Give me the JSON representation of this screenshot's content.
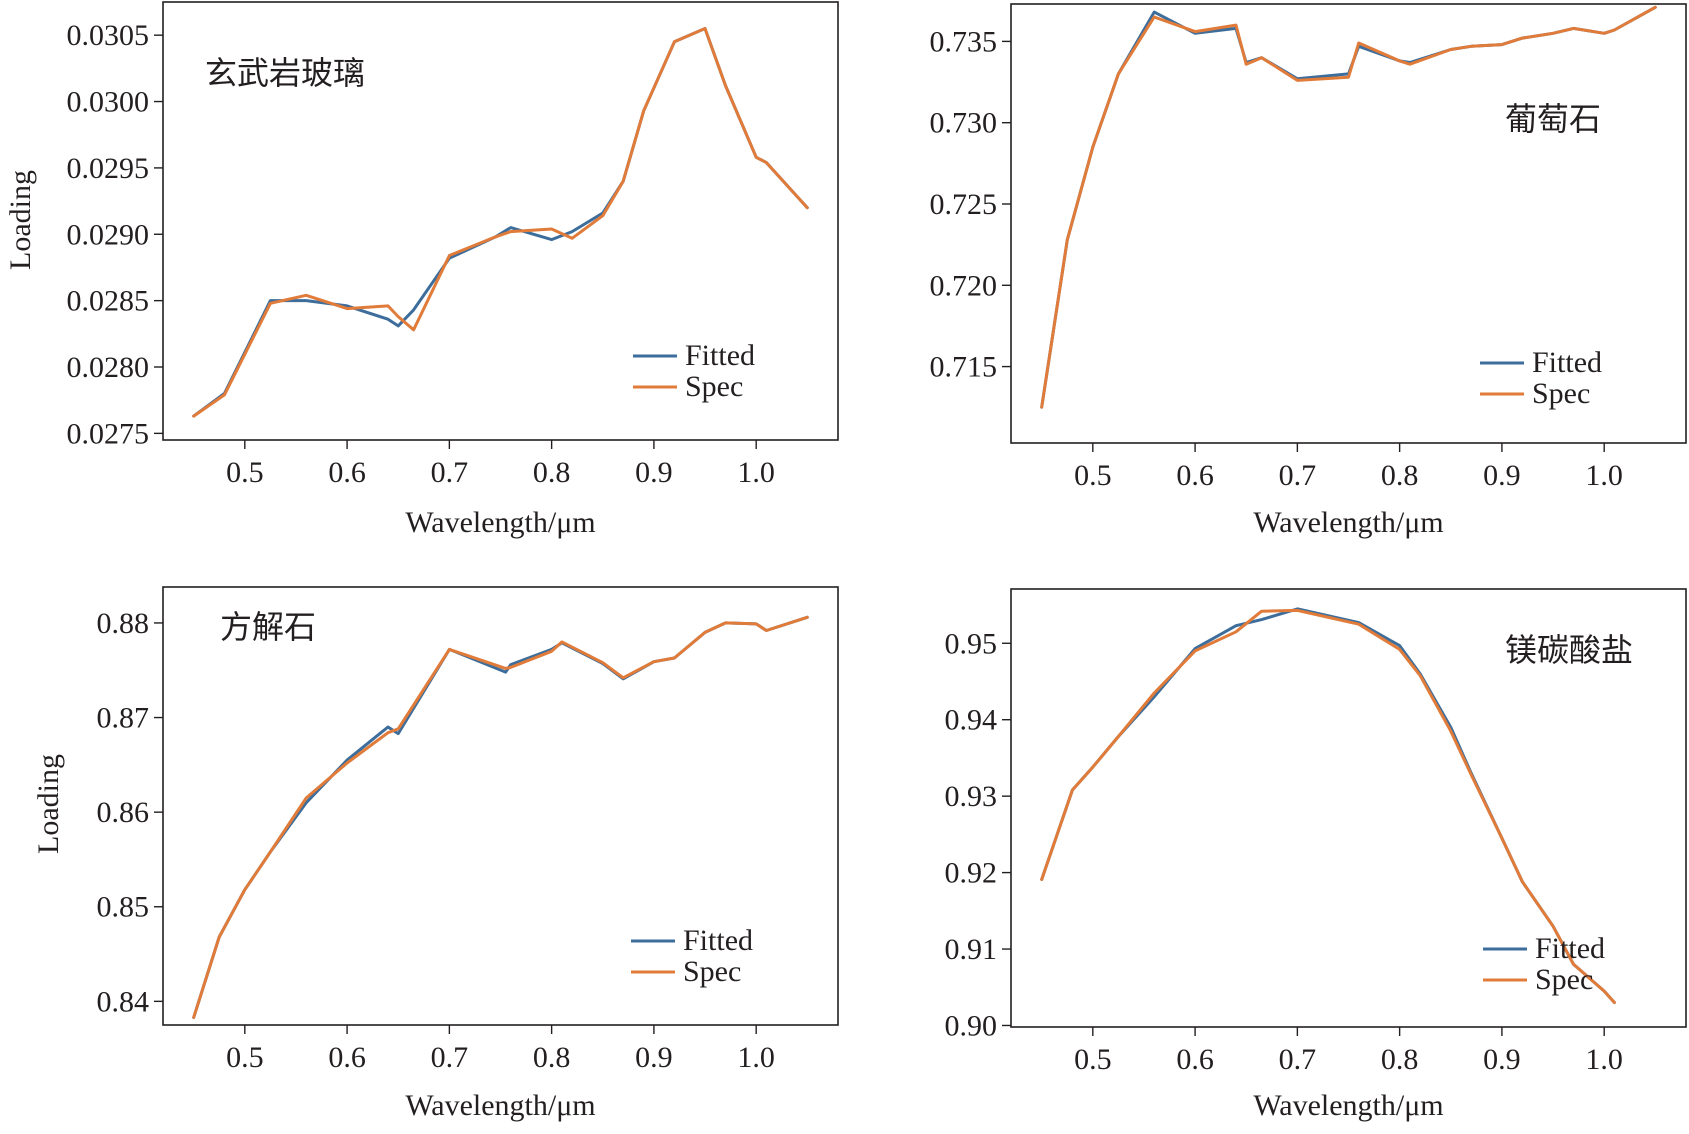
{
  "colors": {
    "fitted": "#3d6d9b",
    "spec": "#e07b39"
  },
  "chart_data": [
    {
      "type": "line",
      "title": "玄武岩玻璃",
      "xlabel": "Wavelength/μm",
      "ylabel": "Loading",
      "xlim": [
        0.42,
        1.08
      ],
      "ylim": [
        0.02745,
        0.03075
      ],
      "xticks": [
        0.5,
        0.6,
        0.7,
        0.8,
        0.9,
        1.0
      ],
      "xtick_labels": [
        "0.5",
        "0.6",
        "0.7",
        "0.8",
        "0.9",
        "1.0"
      ],
      "yticks": [
        0.0275,
        0.028,
        0.0285,
        0.029,
        0.0295,
        0.03,
        0.0305
      ],
      "ytick_labels": [
        "0.0275",
        "0.0280",
        "0.0285",
        "0.0290",
        "0.0295",
        "0.0300",
        "0.0305"
      ],
      "legend": {
        "position": "lower-right",
        "entries": [
          "Fitted",
          "Spec"
        ]
      },
      "series": [
        {
          "name": "Fitted",
          "x": [
            0.45,
            0.48,
            0.525,
            0.56,
            0.6,
            0.64,
            0.65,
            0.665,
            0.7,
            0.745,
            0.76,
            0.8,
            0.82,
            0.85,
            0.87,
            0.89,
            0.92,
            0.95,
            0.97,
            1.0,
            1.01,
            1.05
          ],
          "y": [
            0.02763,
            0.0278,
            0.0285,
            0.0285,
            0.02846,
            0.02836,
            0.02831,
            0.02843,
            0.02882,
            0.02898,
            0.02905,
            0.02896,
            0.02902,
            0.02916,
            0.0294,
            0.02993,
            0.03045,
            0.03055,
            0.03012,
            0.02958,
            0.02954,
            0.0292
          ]
        },
        {
          "name": "Spec",
          "x": [
            0.45,
            0.48,
            0.525,
            0.56,
            0.6,
            0.64,
            0.65,
            0.665,
            0.7,
            0.745,
            0.76,
            0.8,
            0.82,
            0.85,
            0.87,
            0.89,
            0.92,
            0.95,
            0.97,
            1.0,
            1.01,
            1.05
          ],
          "y": [
            0.02763,
            0.02779,
            0.02848,
            0.02854,
            0.02844,
            0.02846,
            0.02838,
            0.02828,
            0.02884,
            0.02898,
            0.02902,
            0.02904,
            0.02897,
            0.02914,
            0.0294,
            0.02993,
            0.03045,
            0.03055,
            0.03012,
            0.02958,
            0.02954,
            0.0292
          ]
        }
      ]
    },
    {
      "type": "line",
      "title": "葡萄石",
      "xlabel": "Wavelength/μm",
      "ylabel": "",
      "xlim": [
        0.42,
        1.08
      ],
      "ylim": [
        0.7103,
        0.7373
      ],
      "xticks": [
        0.5,
        0.6,
        0.7,
        0.8,
        0.9,
        1.0
      ],
      "xtick_labels": [
        "0.5",
        "0.6",
        "0.7",
        "0.8",
        "0.9",
        "1.0"
      ],
      "yticks": [
        0.715,
        0.72,
        0.725,
        0.73,
        0.735
      ],
      "ytick_labels": [
        "0.715",
        "0.720",
        "0.725",
        "0.730",
        "0.735"
      ],
      "legend": {
        "position": "lower-right",
        "entries": [
          "Fitted",
          "Spec"
        ]
      },
      "series": [
        {
          "name": "Fitted",
          "x": [
            0.45,
            0.475,
            0.5,
            0.525,
            0.56,
            0.6,
            0.64,
            0.65,
            0.665,
            0.7,
            0.75,
            0.76,
            0.8,
            0.81,
            0.85,
            0.87,
            0.9,
            0.92,
            0.95,
            0.97,
            1.0,
            1.01,
            1.05
          ],
          "y": [
            0.7125,
            0.7228,
            0.7285,
            0.733,
            0.7368,
            0.7355,
            0.7358,
            0.7337,
            0.734,
            0.7327,
            0.733,
            0.7347,
            0.7338,
            0.7337,
            0.7345,
            0.7347,
            0.7348,
            0.7352,
            0.7355,
            0.7358,
            0.7355,
            0.7357,
            0.7371
          ]
        },
        {
          "name": "Spec",
          "x": [
            0.45,
            0.475,
            0.5,
            0.525,
            0.56,
            0.6,
            0.64,
            0.65,
            0.665,
            0.7,
            0.75,
            0.76,
            0.8,
            0.81,
            0.85,
            0.87,
            0.9,
            0.92,
            0.95,
            0.97,
            1.0,
            1.01,
            1.05
          ],
          "y": [
            0.7125,
            0.7228,
            0.7285,
            0.733,
            0.7365,
            0.7356,
            0.736,
            0.7336,
            0.734,
            0.7326,
            0.7328,
            0.7349,
            0.7338,
            0.7336,
            0.7345,
            0.7347,
            0.7348,
            0.7352,
            0.7355,
            0.7358,
            0.7355,
            0.7357,
            0.7371
          ]
        }
      ]
    },
    {
      "type": "line",
      "title": "方解石",
      "xlabel": "Wavelength/μm",
      "ylabel": "Loading",
      "xlim": [
        0.42,
        1.08
      ],
      "ylim": [
        0.8375,
        0.8838
      ],
      "xticks": [
        0.5,
        0.6,
        0.7,
        0.8,
        0.9,
        1.0
      ],
      "xtick_labels": [
        "0.5",
        "0.6",
        "0.7",
        "0.8",
        "0.9",
        "1.0"
      ],
      "yticks": [
        0.84,
        0.85,
        0.86,
        0.87,
        0.88
      ],
      "ytick_labels": [
        "0.84",
        "0.85",
        "0.86",
        "0.87",
        "0.88"
      ],
      "legend": {
        "position": "lower-right",
        "entries": [
          "Fitted",
          "Spec"
        ]
      },
      "series": [
        {
          "name": "Fitted",
          "x": [
            0.45,
            0.475,
            0.5,
            0.525,
            0.56,
            0.6,
            0.64,
            0.65,
            0.7,
            0.755,
            0.76,
            0.8,
            0.81,
            0.85,
            0.87,
            0.9,
            0.92,
            0.95,
            0.97,
            1.0,
            1.01,
            1.05
          ],
          "y": [
            0.8383,
            0.8468,
            0.8518,
            0.8558,
            0.861,
            0.8655,
            0.869,
            0.8683,
            0.8772,
            0.8748,
            0.8756,
            0.8772,
            0.8779,
            0.8757,
            0.8741,
            0.8759,
            0.8763,
            0.879,
            0.88,
            0.8799,
            0.8792,
            0.8806
          ]
        },
        {
          "name": "Spec",
          "x": [
            0.45,
            0.475,
            0.5,
            0.525,
            0.56,
            0.6,
            0.64,
            0.65,
            0.7,
            0.755,
            0.76,
            0.8,
            0.81,
            0.85,
            0.87,
            0.9,
            0.92,
            0.95,
            0.97,
            1.0,
            1.01,
            1.05
          ],
          "y": [
            0.8383,
            0.8468,
            0.8518,
            0.8558,
            0.8615,
            0.8652,
            0.8684,
            0.8688,
            0.8772,
            0.8752,
            0.8753,
            0.877,
            0.878,
            0.8758,
            0.8742,
            0.8759,
            0.8763,
            0.879,
            0.88,
            0.8799,
            0.8792,
            0.8806
          ]
        }
      ]
    },
    {
      "type": "line",
      "title": "镁碳酸盐",
      "xlabel": "Wavelength/μm",
      "ylabel": "",
      "xlim": [
        0.42,
        1.08
      ],
      "ylim": [
        0.8998,
        0.9571
      ],
      "xticks": [
        0.5,
        0.6,
        0.7,
        0.8,
        0.9,
        1.0
      ],
      "xtick_labels": [
        "0.5",
        "0.6",
        "0.7",
        "0.8",
        "0.9",
        "1.0"
      ],
      "yticks": [
        0.9,
        0.91,
        0.92,
        0.93,
        0.94,
        0.95
      ],
      "ytick_labels": [
        "0.90",
        "0.91",
        "0.92",
        "0.93",
        "0.94",
        "0.95"
      ],
      "legend": {
        "position": "lower-right",
        "entries": [
          "Fitted",
          "Spec"
        ]
      },
      "series": [
        {
          "name": "Fitted",
          "x": [
            0.45,
            0.48,
            0.5,
            0.525,
            0.56,
            0.6,
            0.64,
            0.665,
            0.7,
            0.76,
            0.8,
            0.82,
            0.85,
            0.87,
            0.9,
            0.92,
            0.95,
            0.97,
            1.0,
            1.01
          ],
          "y": [
            0.9191,
            0.9308,
            0.9338,
            0.9378,
            0.943,
            0.9493,
            0.9523,
            0.9531,
            0.9545,
            0.9527,
            0.9497,
            0.946,
            0.939,
            0.933,
            0.9245,
            0.9188,
            0.913,
            0.908,
            0.9045,
            0.903
          ]
        },
        {
          "name": "Spec",
          "x": [
            0.45,
            0.48,
            0.5,
            0.525,
            0.56,
            0.6,
            0.64,
            0.665,
            0.7,
            0.76,
            0.8,
            0.82,
            0.85,
            0.87,
            0.9,
            0.92,
            0.95,
            0.97,
            1.0,
            1.01
          ],
          "y": [
            0.9191,
            0.9308,
            0.9338,
            0.9378,
            0.9435,
            0.949,
            0.9515,
            0.9542,
            0.9543,
            0.9525,
            0.9492,
            0.9458,
            0.9385,
            0.9328,
            0.9245,
            0.9188,
            0.913,
            0.908,
            0.9045,
            0.903
          ]
        }
      ]
    }
  ]
}
